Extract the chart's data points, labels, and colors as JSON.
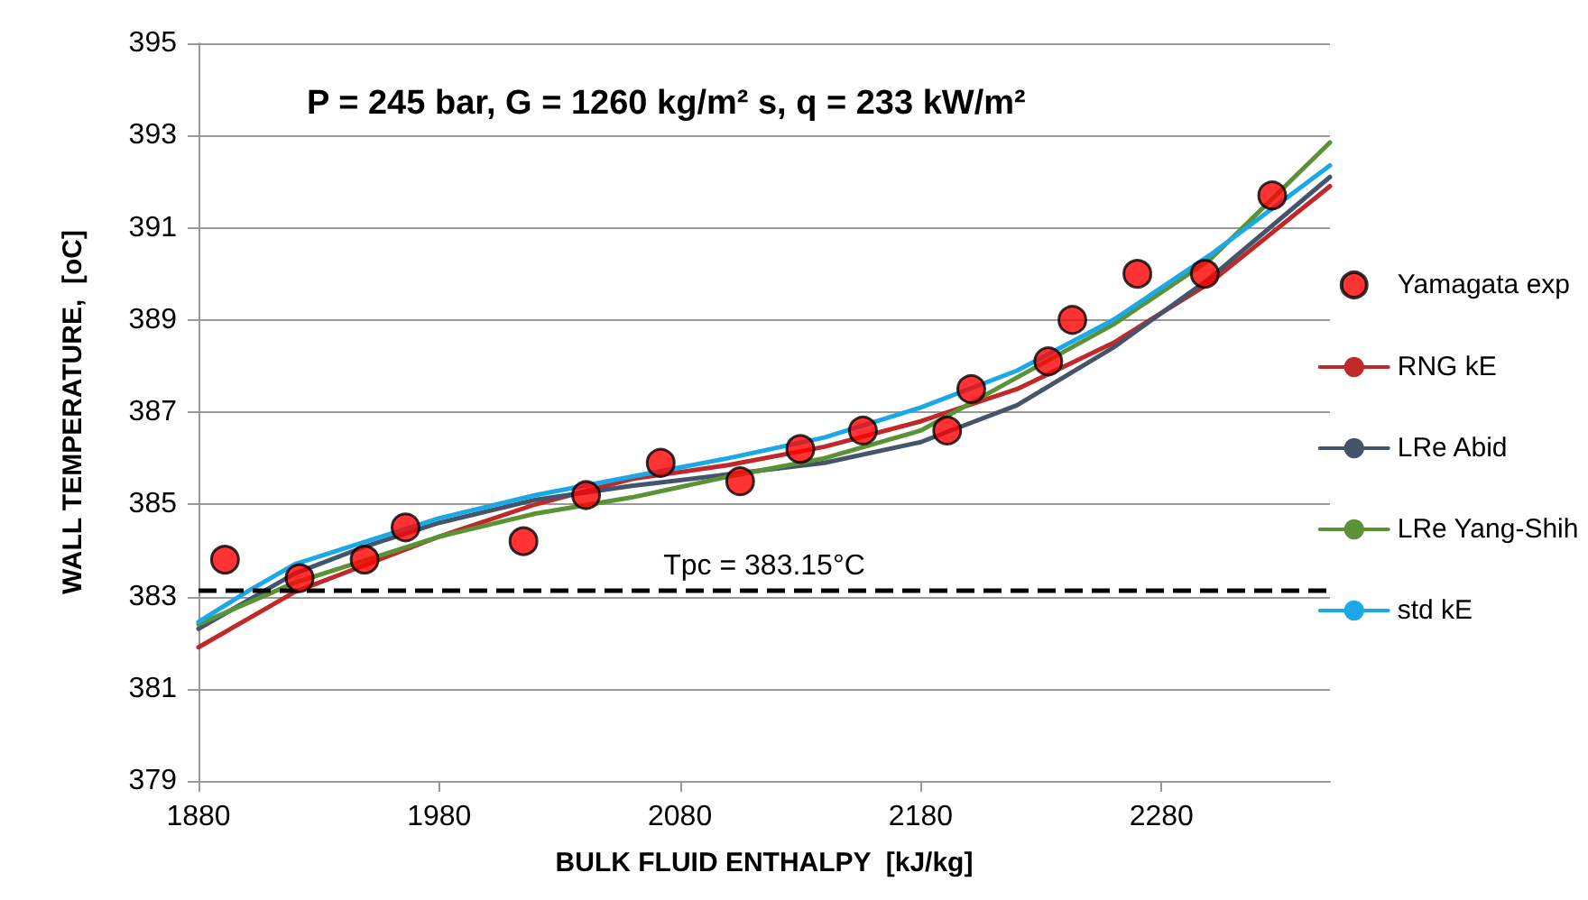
{
  "chart_data": {
    "type": "line",
    "title": "P = 245 bar, G = 1260 kg/m² s, q = 233 kW/m²",
    "xlabel": "BULK FLUID ENTHALPY  [kJ/kg]",
    "ylabel": "WALL TEMPERATURE,  [oC]",
    "xlim": [
      1880,
      2350
    ],
    "xticks": [
      1880,
      1980,
      2080,
      2180,
      2280
    ],
    "ylim": [
      379,
      395
    ],
    "yticks": [
      379,
      381,
      383,
      385,
      387,
      389,
      391,
      393,
      395
    ],
    "grid": "y",
    "legend": "right",
    "marker": "none",
    "line_style": "solid",
    "series": [
      {
        "name": "Yamagata exp",
        "type": "scatter",
        "marker": "circle",
        "color": "#ff0000",
        "x": [
          1891,
          1922,
          1949,
          1966,
          2015,
          2041,
          2072,
          2105,
          2130,
          2156,
          2191,
          2201,
          2233,
          2243,
          2270,
          2298,
          2326
        ],
        "values": [
          383.8,
          383.4,
          383.8,
          384.5,
          384.2,
          385.2,
          385.9,
          385.5,
          386.2,
          386.6,
          386.6,
          387.5,
          388.1,
          389.0,
          390.0,
          390.0,
          391.7
        ]
      },
      {
        "name": "RNG kE",
        "color": "#c0282a",
        "x": [
          1880,
          1900,
          1920,
          1950,
          1980,
          2020,
          2060,
          2100,
          2140,
          2180,
          2220,
          2260,
          2300,
          2350
        ],
        "values": [
          381.9,
          382.5,
          383.1,
          383.7,
          384.3,
          385.0,
          385.55,
          385.85,
          386.25,
          386.8,
          387.5,
          388.5,
          389.8,
          391.9
        ]
      },
      {
        "name": "LRe Abid",
        "color": "#44546a",
        "x": [
          1880,
          1900,
          1920,
          1950,
          1980,
          2020,
          2060,
          2100,
          2140,
          2180,
          2200,
          2220,
          2260,
          2300,
          2350
        ],
        "values": [
          382.3,
          382.9,
          383.5,
          384.1,
          384.6,
          385.1,
          385.4,
          385.65,
          385.9,
          386.35,
          386.75,
          387.15,
          388.4,
          389.9,
          392.1
        ]
      },
      {
        "name": "LRe Yang-Shih",
        "color": "#5b9236",
        "x": [
          1880,
          1920,
          1950,
          1980,
          2020,
          2060,
          2100,
          2140,
          2180,
          2220,
          2260,
          2300,
          2350
        ],
        "values": [
          382.4,
          383.3,
          383.8,
          384.3,
          384.8,
          385.15,
          385.6,
          386.0,
          386.6,
          387.75,
          388.9,
          390.3,
          392.85
        ]
      },
      {
        "name": "std kE",
        "color": "#1aa8e6",
        "x": [
          1880,
          1900,
          1920,
          1950,
          1980,
          2020,
          2060,
          2100,
          2140,
          2180,
          2220,
          2260,
          2300,
          2350
        ],
        "values": [
          382.45,
          383.1,
          383.7,
          384.2,
          384.7,
          385.2,
          385.6,
          386.0,
          386.45,
          387.1,
          387.9,
          389.0,
          390.4,
          392.35
        ]
      }
    ],
    "ref_lines": [
      {
        "axis": "y",
        "value": 383.15,
        "label": "Tpc = 383.15°C",
        "color": "#000000",
        "line_style": "dashed"
      }
    ]
  }
}
